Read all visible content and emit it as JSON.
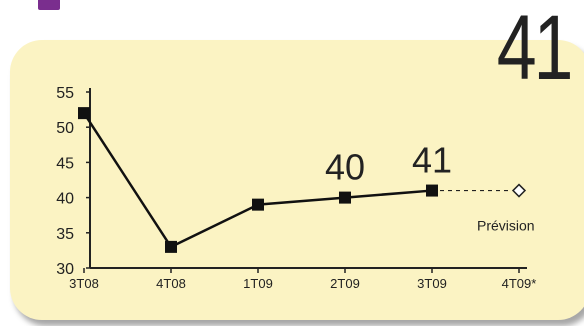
{
  "headline_value": "41",
  "colors": {
    "accent": "#7a2e8e",
    "card_background": "#fbf3c3",
    "line": "#111111"
  },
  "chart_data": {
    "type": "line",
    "categories": [
      "3T08",
      "4T08",
      "1T09",
      "2T09",
      "3T09",
      "4T09*"
    ],
    "series": [
      {
        "values": [
          52,
          33,
          39,
          40,
          41,
          null
        ]
      }
    ],
    "forecast": {
      "from_category": "3T09",
      "to_category": "4T09*",
      "values": [
        41,
        41
      ],
      "label": "Prévision"
    },
    "data_labels": [
      {
        "category": "2T09",
        "text": "40"
      },
      {
        "category": "3T09",
        "text": "41"
      }
    ],
    "y_ticks": [
      30,
      35,
      40,
      45,
      50,
      55
    ],
    "ylim": [
      30,
      55
    ],
    "title": "",
    "xlabel": "",
    "ylabel": "",
    "grid": false
  }
}
